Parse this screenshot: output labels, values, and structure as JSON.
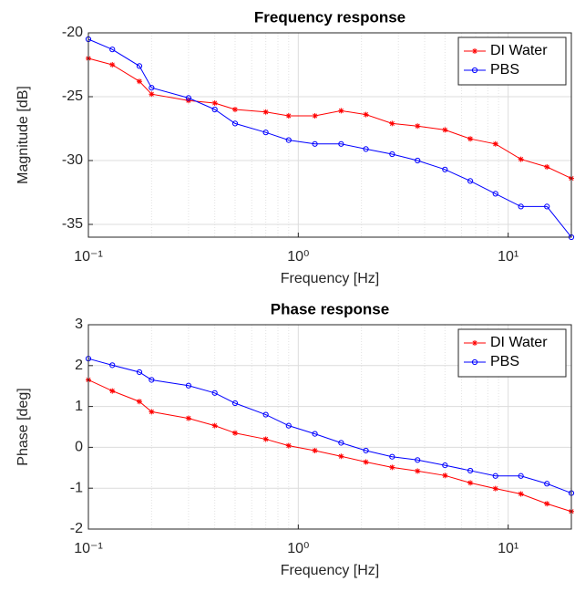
{
  "chart_data": [
    {
      "type": "line",
      "title": "Frequency response",
      "xlabel": "Frequency [Hz]",
      "ylabel": "Magnitude [dB]",
      "x": [
        0.1,
        0.13,
        0.175,
        0.2,
        0.3,
        0.4,
        0.5,
        0.7,
        0.9,
        1.2,
        1.6,
        2.1,
        2.8,
        3.7,
        5,
        6.6,
        8.7,
        11.5,
        15.3,
        20
      ],
      "series": [
        {
          "name": "DI Water",
          "color": "#ff0000",
          "marker": "star",
          "values": [
            -22.0,
            -22.5,
            -23.8,
            -24.8,
            -25.3,
            -25.5,
            -26.0,
            -26.2,
            -26.5,
            -26.5,
            -26.1,
            -26.4,
            -27.1,
            -27.3,
            -27.6,
            -28.3,
            -28.7,
            -29.9,
            -30.5,
            -31.4
          ]
        },
        {
          "name": "PBS",
          "color": "#0000ff",
          "marker": "circle",
          "values": [
            -20.5,
            -21.3,
            -22.6,
            -24.3,
            -25.1,
            -26.0,
            -27.1,
            -27.8,
            -28.4,
            -28.7,
            -28.7,
            -29.1,
            -29.5,
            -30.0,
            -30.7,
            -31.6,
            -32.6,
            -33.6,
            -33.6,
            -36.0
          ]
        }
      ],
      "xscale": "log",
      "xlim": [
        0.1,
        20
      ],
      "xticks": [
        {
          "value": 0.1,
          "label": "10⁻¹"
        },
        {
          "value": 1,
          "label": "10⁰"
        },
        {
          "value": 10,
          "label": "10¹"
        }
      ],
      "xminor": [
        0.2,
        0.3,
        0.4,
        0.5,
        0.6,
        0.7,
        0.8,
        0.9,
        2,
        3,
        4,
        5,
        6,
        7,
        8,
        9
      ],
      "ylim": [
        -36,
        -20
      ],
      "yticks": [
        -35,
        -30,
        -25,
        -20
      ],
      "grid": true,
      "legend": "northeast"
    },
    {
      "type": "line",
      "title": "Phase response",
      "xlabel": "Frequency [Hz]",
      "ylabel": "Phase [deg]",
      "x": [
        0.1,
        0.13,
        0.175,
        0.2,
        0.3,
        0.4,
        0.5,
        0.7,
        0.9,
        1.2,
        1.6,
        2.1,
        2.8,
        3.7,
        5,
        6.6,
        8.7,
        11.5,
        15.3,
        20
      ],
      "series": [
        {
          "name": "DI Water",
          "color": "#ff0000",
          "marker": "star",
          "values": [
            1.65,
            1.38,
            1.12,
            0.87,
            0.71,
            0.53,
            0.35,
            0.2,
            0.04,
            -0.08,
            -0.22,
            -0.36,
            -0.49,
            -0.58,
            -0.69,
            -0.87,
            -1.01,
            -1.14,
            -1.38,
            -1.57
          ]
        },
        {
          "name": "PBS",
          "color": "#0000ff",
          "marker": "circle",
          "values": [
            2.17,
            2.01,
            1.84,
            1.65,
            1.51,
            1.33,
            1.08,
            0.8,
            0.53,
            0.33,
            0.11,
            -0.08,
            -0.23,
            -0.31,
            -0.44,
            -0.57,
            -0.7,
            -0.7,
            -0.89,
            -1.12
          ]
        }
      ],
      "xscale": "log",
      "xlim": [
        0.1,
        20
      ],
      "xticks": [
        {
          "value": 0.1,
          "label": "10⁻¹"
        },
        {
          "value": 1,
          "label": "10⁰"
        },
        {
          "value": 10,
          "label": "10¹"
        }
      ],
      "xminor": [
        0.2,
        0.3,
        0.4,
        0.5,
        0.6,
        0.7,
        0.8,
        0.9,
        2,
        3,
        4,
        5,
        6,
        7,
        8,
        9
      ],
      "ylim": [
        -2,
        3
      ],
      "yticks": [
        -2,
        -1,
        0,
        1,
        2,
        3
      ],
      "grid": true,
      "legend": "northeast"
    }
  ]
}
